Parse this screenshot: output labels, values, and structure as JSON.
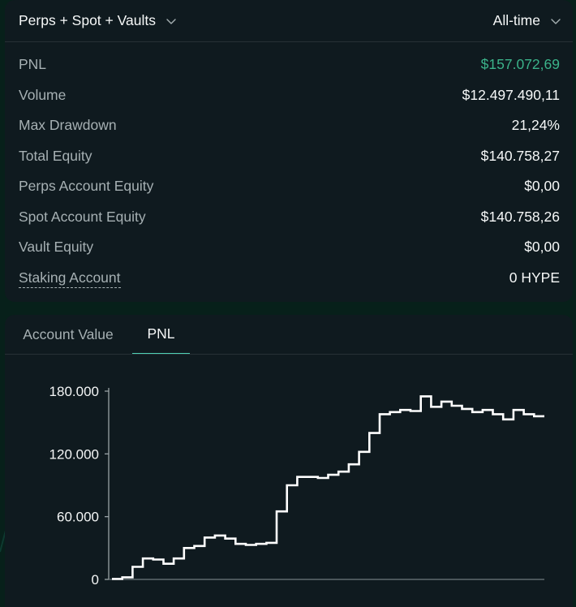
{
  "summary": {
    "scope_select": {
      "value": "Perps + Spot + Vaults",
      "icon": "chevron-down-icon"
    },
    "time_select": {
      "value": "All-time",
      "icon": "chevron-down-icon"
    },
    "stats": [
      {
        "label": "PNL",
        "value": "$157.072,69",
        "color": "#3bb38a"
      },
      {
        "label": "Volume",
        "value": "$12.497.490,11"
      },
      {
        "label": "Max Drawdown",
        "value": "21,24%"
      },
      {
        "label": "Total Equity",
        "value": "$140.758,27"
      },
      {
        "label": "Perps Account Equity",
        "value": "$0,00"
      },
      {
        "label": "Spot Account Equity",
        "value": "$140.758,26"
      },
      {
        "label": "Vault Equity",
        "value": "$0,00"
      },
      {
        "label": "Staking Account",
        "value": "0 HYPE",
        "underline": "dashed"
      }
    ]
  },
  "chart_panel": {
    "tabs": [
      {
        "label": "Account Value",
        "active": false
      },
      {
        "label": "PNL",
        "active": true
      }
    ]
  },
  "chart_data": {
    "type": "line",
    "step": true,
    "title": "",
    "xlabel": "",
    "ylabel": "",
    "ylim": [
      0,
      180000
    ],
    "yticks": [
      0,
      60000,
      120000,
      180000
    ],
    "ytick_labels": [
      "0",
      "60.000",
      "120.000",
      "180.000"
    ],
    "series": [
      {
        "line_color": "#ffffff",
        "values": [
          500,
          2000,
          12000,
          20000,
          19000,
          15000,
          20000,
          30000,
          32000,
          40000,
          42000,
          39000,
          34000,
          33000,
          34000,
          35000,
          65000,
          90000,
          98000,
          98000,
          97000,
          100000,
          103000,
          110000,
          122000,
          140000,
          158000,
          160000,
          162000,
          161000,
          175000,
          165000,
          170000,
          166000,
          163000,
          160000,
          162000,
          158000,
          153000,
          162000,
          158000,
          156000
        ]
      }
    ]
  }
}
